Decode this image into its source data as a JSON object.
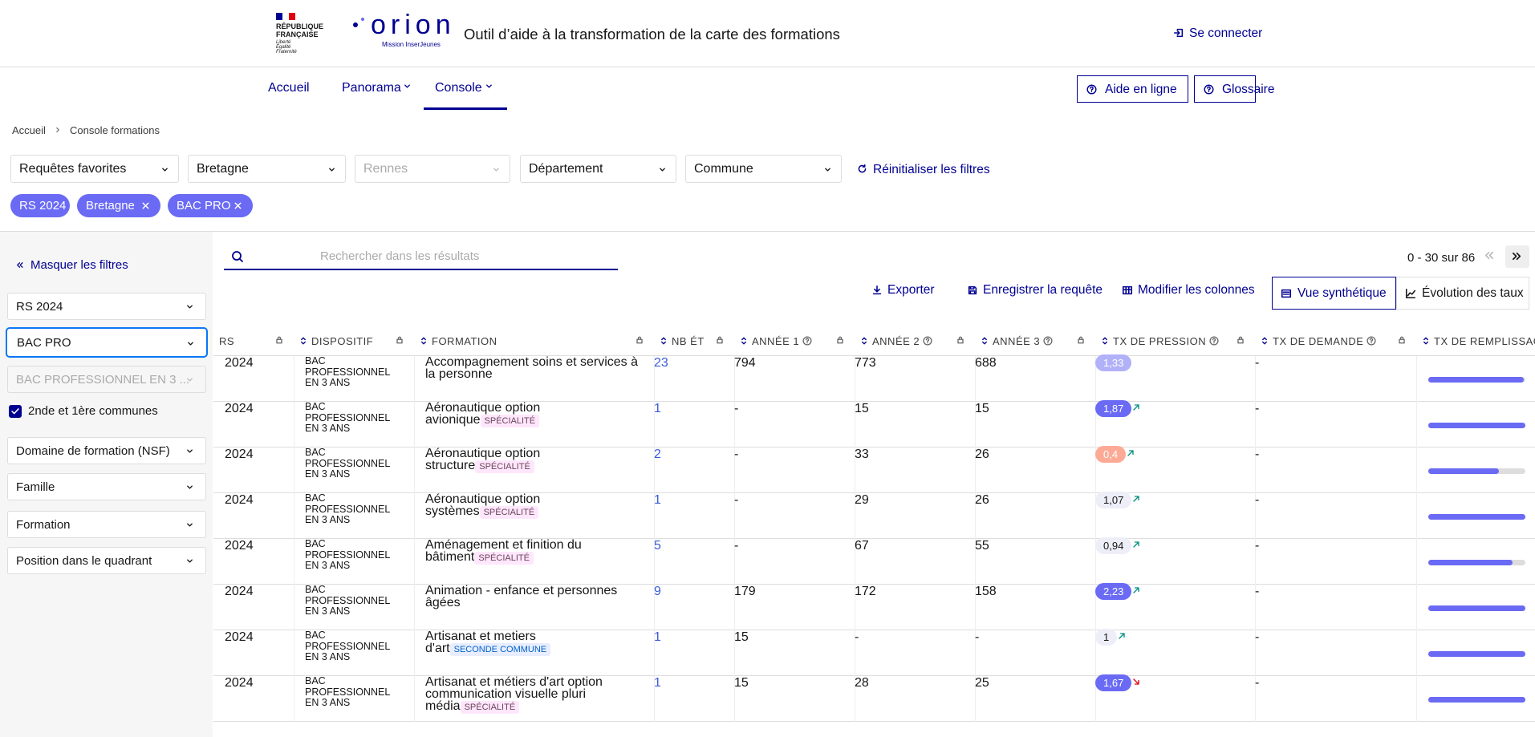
{
  "header": {
    "republique": [
      "RÉPUBLIQUE",
      "FRANÇAISE"
    ],
    "devise": [
      "Liberté",
      "Égalité",
      "Fraternité"
    ],
    "logo": "orion",
    "logo_subtitle": "Mission InserJeunes",
    "title": "Outil d’aide à la transformation de la carte des formations",
    "login": "Se connecter"
  },
  "nav": {
    "items": [
      "Accueil",
      "Panorama",
      "Console"
    ],
    "dropdown": [
      false,
      true,
      true
    ],
    "active": 2,
    "buttons": [
      "Aide en ligne",
      "Glossaire"
    ]
  },
  "breadcrumb": [
    "Accueil",
    "Console formations"
  ],
  "filters": {
    "selects": [
      {
        "label": "Requêtes favorites",
        "disabled": false
      },
      {
        "label": "Bretagne",
        "disabled": false
      },
      {
        "label": "Rennes",
        "disabled": true
      },
      {
        "label": "Département",
        "disabled": false
      },
      {
        "label": "Commune",
        "disabled": false
      }
    ],
    "reset": "Réinitialiser les filtres",
    "chips": [
      {
        "label": "RS 2024",
        "removable": false
      },
      {
        "label": "Bretagne",
        "removable": true
      },
      {
        "label": "BAC PRO",
        "removable": true
      }
    ]
  },
  "sidebar": {
    "toggle": "Masquer les filtres",
    "items": [
      {
        "kind": "select",
        "label": "RS 2024"
      },
      {
        "kind": "select",
        "label": "BAC PRO",
        "focused": true
      },
      {
        "kind": "select",
        "label": "BAC PROFESSIONNEL EN 3 ...",
        "disabled": true
      },
      {
        "kind": "checkbox",
        "label": "2nde et 1ère communes",
        "checked": true
      },
      {
        "kind": "select",
        "label": "Domaine de formation (NSF)"
      },
      {
        "kind": "select",
        "label": "Famille"
      },
      {
        "kind": "select",
        "label": "Formation"
      },
      {
        "kind": "select",
        "label": "Position dans le quadrant"
      }
    ]
  },
  "search": {
    "placeholder": "Rechercher dans les résultats"
  },
  "pagination": "0 - 30 sur 86",
  "toolbar": {
    "actions": [
      "Exporter",
      "Enregistrer la requête",
      "Modifier les colonnes"
    ],
    "views": [
      "Vue synthétique",
      "Évolution des taux"
    ],
    "active_view": 0
  },
  "table": {
    "columns": [
      {
        "label": "RS",
        "help": false
      },
      {
        "label": "DISPOSITIF",
        "help": false
      },
      {
        "label": "FORMATION",
        "help": false
      },
      {
        "label": "NB ÉT",
        "help": false
      },
      {
        "label": "ANNÉE 1",
        "help": true
      },
      {
        "label": "ANNÉE 2",
        "help": true
      },
      {
        "label": "ANNÉE 3",
        "help": true
      },
      {
        "label": "TX DE PRESSION",
        "help": true
      },
      {
        "label": "TX DE DEMANDE",
        "help": true
      },
      {
        "label": "TX DE REMPLISSAGE",
        "help": false
      }
    ],
    "rows": [
      {
        "rs": "2024",
        "dispositif": "BAC PROFESSIONNEL EN 3 ANS",
        "formation": "Accompagnement soins et services à la personne",
        "effectif": "23",
        "annee1": "794",
        "annee2": "773",
        "annee3": "688",
        "pression": "1,33",
        "pression_tone": "light",
        "trend": null,
        "demande": "-",
        "remplissage": 98
      },
      {
        "rs": "2024",
        "dispositif": "BAC PROFESSIONNEL EN 3 ANS",
        "formation": "Aéronautique option avionique",
        "tag": "SPÉCIALITÉ",
        "effectif": "1",
        "annee1": "-",
        "annee2": "15",
        "annee3": "15",
        "pression": "1,87",
        "pression_tone": "strong",
        "trend": "up",
        "demande": "-",
        "remplissage": 100
      },
      {
        "rs": "2024",
        "dispositif": "BAC PROFESSIONNEL EN 3 ANS",
        "formation": "Aéronautique option structure",
        "tag": "SPÉCIALITÉ",
        "effectif": "2",
        "annee1": "-",
        "annee2": "33",
        "annee3": "26",
        "pression": "0,4",
        "pression_tone": "low",
        "trend": "up",
        "demande": "-",
        "remplissage": 73
      },
      {
        "rs": "2024",
        "dispositif": "BAC PROFESSIONNEL EN 3 ANS",
        "formation": "Aéronautique option systèmes",
        "tag": "SPÉCIALITÉ",
        "effectif": "1",
        "annee1": "-",
        "annee2": "29",
        "annee3": "26",
        "pression": "1,07",
        "pression_tone": "neutral",
        "trend": "up",
        "demande": "-",
        "remplissage": 100
      },
      {
        "rs": "2024",
        "dispositif": "BAC PROFESSIONNEL EN 3 ANS",
        "formation": "Aménagement et finition du bâtiment",
        "tag": "SPÉCIALITÉ",
        "effectif": "5",
        "annee1": "-",
        "annee2": "67",
        "annee3": "55",
        "pression": "0,94",
        "pression_tone": "neutral",
        "trend": "up",
        "demande": "-",
        "remplissage": 87
      },
      {
        "rs": "2024",
        "dispositif": "BAC PROFESSIONNEL EN 3 ANS",
        "formation": "Animation - enfance et personnes âgées",
        "effectif": "9",
        "annee1": "179",
        "annee2": "172",
        "annee3": "158",
        "pression": "2,23",
        "pression_tone": "strong",
        "trend": "up",
        "demande": "-",
        "remplissage": 100
      },
      {
        "rs": "2024",
        "dispositif": "BAC PROFESSIONNEL EN 3 ANS",
        "formation": "Artisanat et metiers d'art",
        "tag": "SECONDE COMMUNE",
        "tag_tone": "blue",
        "effectif": "1",
        "annee1": "15",
        "annee2": "-",
        "annee3": "-",
        "pression": "1",
        "pression_tone": "neutral",
        "trend": "up",
        "demande": "-",
        "remplissage": 100
      },
      {
        "rs": "2024",
        "dispositif": "BAC PROFESSIONNEL EN 3 ANS",
        "formation": "Artisanat et métiers d'art option communication visuelle pluri média",
        "tag": "SPÉCIALITÉ",
        "effectif": "1",
        "annee1": "15",
        "annee2": "28",
        "annee3": "25",
        "pression": "1,67",
        "pression_tone": "strong",
        "trend": "down",
        "demande": "-",
        "remplissage": 100
      }
    ]
  }
}
